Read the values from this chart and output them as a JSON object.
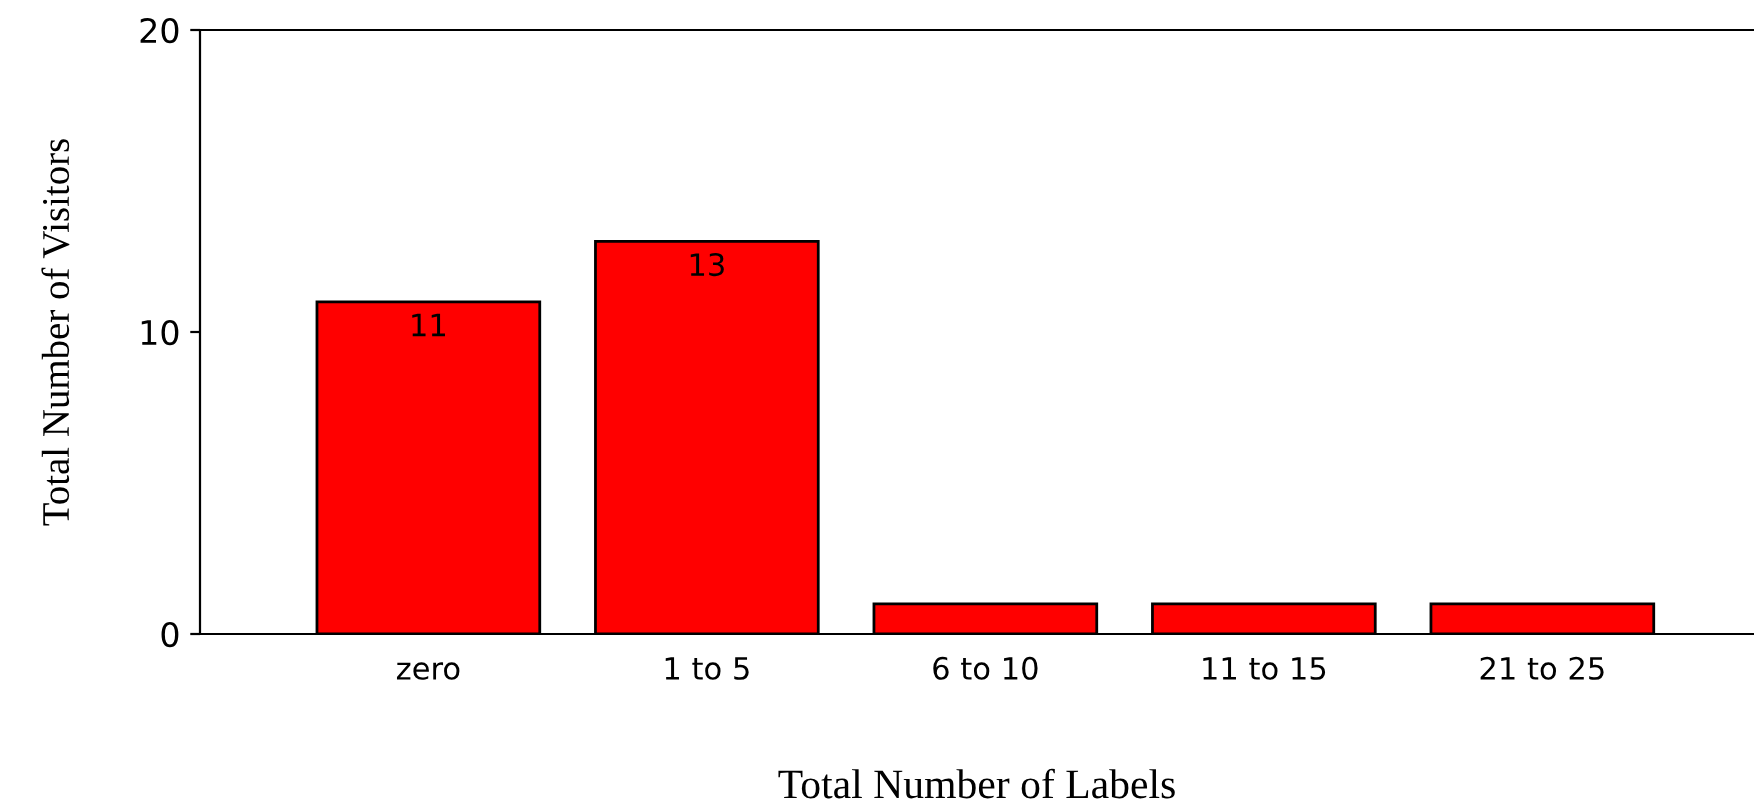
{
  "chart_data": {
    "type": "bar",
    "xlabel": "Total Number of Labels",
    "ylabel": "Total Number of Visitors",
    "categories": [
      "zero",
      "1 to 5",
      "6 to 10",
      "11 to 15",
      "21 to 25"
    ],
    "values": [
      11,
      13,
      1,
      1,
      1
    ],
    "value_labels": [
      "11",
      "13",
      null,
      null,
      null
    ],
    "color": "#ff0000",
    "ylim": [
      0,
      20
    ],
    "yticks": [
      0,
      10,
      20
    ],
    "grid": false
  }
}
